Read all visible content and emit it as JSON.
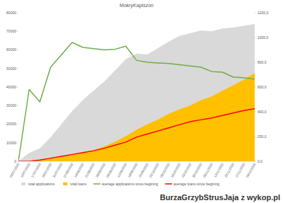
{
  "chart_data": {
    "type": "area",
    "title": "MokryKapiszon",
    "annotations": [
      "BurzaGrzybStrusJaja z wykop.pl"
    ],
    "categories": [
      "03/07/2023",
      "10/07/2023",
      "17/07/2023",
      "24/07/2023",
      "31/07/2023",
      "07/08/2023",
      "14/08/2023",
      "21/08/2023",
      "28/08/2023",
      "04/09/2023",
      "11/09/2023",
      "18/09/2023",
      "25/09/2023",
      "02/10/2023",
      "09/10/2023",
      "16/10/2023",
      "23/10/2023",
      "30/10/2023",
      "06/11/2023",
      "13/11/2023",
      "20/11/2023",
      "27/11/2023",
      "04/12/2023"
    ],
    "series": [
      {
        "name": "total applications",
        "type": "area",
        "color": "#d9d9d9",
        "values": [
          0,
          4500,
          7000,
          13000,
          20000,
          27000,
          33000,
          38000,
          43000,
          49000,
          55000,
          58000,
          57500,
          61000,
          64500,
          67500,
          69000,
          70500,
          70000,
          71500,
          72000,
          73000,
          74000
        ]
      },
      {
        "name": "total loans",
        "type": "area",
        "color": "#ffc000",
        "values": [
          0,
          300,
          800,
          1500,
          2500,
          3500,
          4500,
          6000,
          8000,
          10500,
          13500,
          17000,
          20000,
          22500,
          25500,
          28000,
          30000,
          33000,
          35000,
          38000,
          41000,
          44000,
          47500
        ]
      },
      {
        "name": "average applications since begining",
        "type": "line",
        "color": "#70ad47",
        "axis": "y2",
        "values": [
          0,
          580,
          480,
          760,
          860,
          960,
          920,
          910,
          900,
          905,
          930,
          815,
          800,
          795,
          790,
          780,
          770,
          760,
          725,
          720,
          680,
          675,
          665
        ]
      },
      {
        "name": "average loans since begining",
        "type": "line",
        "color": "#ff0000",
        "axis": "y2",
        "values": [
          0,
          0,
          10,
          25,
          40,
          55,
          70,
          85,
          105,
          130,
          155,
          195,
          220,
          245,
          270,
          295,
          320,
          335,
          350,
          370,
          390,
          410,
          425
        ]
      }
    ],
    "ylim": [
      0,
      80000
    ],
    "yticks": [
      0,
      10000,
      20000,
      30000,
      40000,
      50000,
      60000,
      70000,
      80000
    ],
    "y2lim": [
      0,
      1200
    ],
    "y2ticks": [
      {
        "value": 0,
        "label": "0,0"
      },
      {
        "value": 200,
        "label": "200,0"
      },
      {
        "value": 400,
        "label": "400,0"
      },
      {
        "value": 600,
        "label": "600,0"
      },
      {
        "value": 800,
        "label": "800,0"
      },
      {
        "value": 1000,
        "label": "1000,0"
      },
      {
        "value": 1200,
        "label": "1200,0"
      }
    ],
    "grid": false,
    "legend": "bottom"
  }
}
